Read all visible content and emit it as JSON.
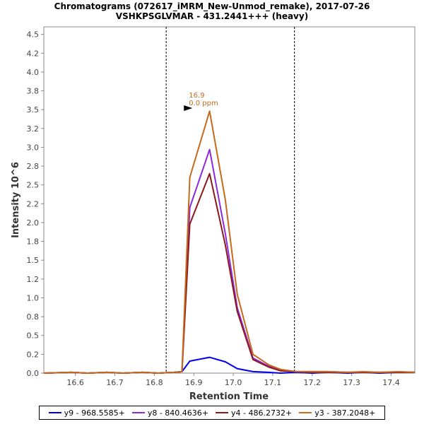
{
  "chart_data": {
    "type": "line",
    "title": "Chromatograms (072617_iMRM_New-Unmod_remake), 2017-07-26",
    "subtitle": "VSHKPSGLVMAR - 431.2441+++ (heavy)",
    "xlabel": "Retention Time",
    "ylabel": "Intensity 10^6",
    "xlim": [
      16.52,
      17.46
    ],
    "ylim": [
      0,
      4.6
    ],
    "xticks": [
      "16.6",
      "16.7",
      "16.8",
      "16.9",
      "17.0",
      "17.1",
      "17.2",
      "17.3",
      "17.4"
    ],
    "yticks": [
      "0.0",
      "0.2",
      "0.5",
      "0.8",
      "1.0",
      "1.2",
      "1.5",
      "1.8",
      "2.0",
      "2.2",
      "2.5",
      "2.8",
      "3.0",
      "3.2",
      "3.5",
      "3.8",
      "4.0",
      "4.2",
      "4.5"
    ],
    "grid": false,
    "legend_position": "bottom",
    "integration_bounds": [
      16.83,
      17.155
    ],
    "annotation": {
      "x": 16.9,
      "y": 3.52,
      "label": "16.9",
      "sublabel": "0.0 ppm"
    },
    "x": [
      16.52,
      16.59,
      16.63,
      16.68,
      16.72,
      16.77,
      16.81,
      16.85,
      16.87,
      16.89,
      16.94,
      16.98,
      17.01,
      17.05,
      17.09,
      17.12,
      17.16,
      17.2,
      17.24,
      17.29,
      17.33,
      17.37,
      17.42,
      17.46
    ],
    "series": [
      {
        "name": "y9 - 968.5585+",
        "color": "#0000ee",
        "values": [
          0.0,
          0.01,
          0.0,
          0.01,
          0.0,
          0.01,
          0.0,
          0.01,
          0.02,
          0.16,
          0.21,
          0.15,
          0.06,
          0.02,
          0.01,
          0.0,
          0.01,
          0.0,
          0.01,
          0.0,
          0.01,
          0.0,
          0.01,
          0.01
        ]
      },
      {
        "name": "y8 - 840.4636+",
        "color": "#8a2be2",
        "values": [
          0.0,
          0.01,
          0.0,
          0.01,
          0.0,
          0.01,
          0.0,
          0.01,
          0.02,
          2.2,
          2.97,
          1.85,
          0.87,
          0.2,
          0.09,
          0.04,
          0.02,
          0.02,
          0.02,
          0.01,
          0.01,
          0.01,
          0.01,
          0.01
        ]
      },
      {
        "name": "y4 - 486.2732+",
        "color": "#8b1a1a",
        "values": [
          0.0,
          0.01,
          0.0,
          0.01,
          0.0,
          0.01,
          0.0,
          0.01,
          0.02,
          1.98,
          2.65,
          1.7,
          0.82,
          0.18,
          0.08,
          0.03,
          0.02,
          0.01,
          0.01,
          0.01,
          0.01,
          0.01,
          0.01,
          0.01
        ]
      },
      {
        "name": "y3 - 387.2048+",
        "color": "#c56a1a",
        "values": [
          0.0,
          0.01,
          0.0,
          0.01,
          0.0,
          0.01,
          0.0,
          0.01,
          0.02,
          2.6,
          3.48,
          2.3,
          1.05,
          0.25,
          0.11,
          0.05,
          0.02,
          0.02,
          0.02,
          0.01,
          0.02,
          0.01,
          0.02,
          0.01
        ]
      }
    ]
  }
}
